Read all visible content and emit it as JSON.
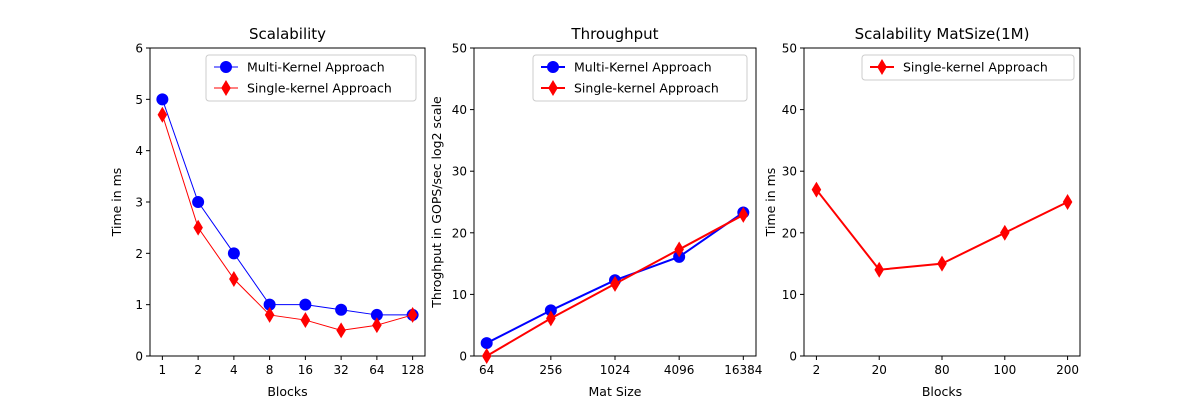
{
  "chart_data": [
    {
      "type": "line",
      "title": "Scalability",
      "xlabel": "Blocks",
      "ylabel": "Time in ms",
      "categories": [
        "1",
        "2",
        "4",
        "8",
        "16",
        "32",
        "64",
        "128"
      ],
      "ylim": [
        0,
        6
      ],
      "yticks": [
        0,
        1,
        2,
        3,
        4,
        5,
        6
      ],
      "grid": false,
      "legend": "top-right",
      "series": [
        {
          "name": " Multi-Kernel Approach",
          "color": "#0000ff",
          "marker": "circle",
          "linewidth": 1,
          "values": [
            5,
            3,
            2,
            1,
            1,
            0.9,
            0.8,
            0.8
          ]
        },
        {
          "name": "Single-kernel Approach",
          "color": "#ff0000",
          "marker": "diamond",
          "linewidth": 1,
          "values": [
            4.7,
            2.5,
            1.5,
            0.8,
            0.7,
            0.5,
            0.6,
            0.8
          ]
        }
      ]
    },
    {
      "type": "line",
      "title": "Throughput",
      "xlabel": "Mat Size",
      "ylabel": "Throghput in GOPS/sec log2 scale",
      "categories": [
        "64",
        "256",
        "1024",
        "4096",
        "16384"
      ],
      "ylim": [
        0,
        50
      ],
      "yticks": [
        0,
        10,
        20,
        30,
        40,
        50
      ],
      "grid": false,
      "legend": "top-right",
      "series": [
        {
          "name": " Multi-Kernel Approach",
          "color": "#0000ff",
          "marker": "circle",
          "linewidth": 2,
          "values": [
            2.1,
            7.4,
            12.3,
            16.1,
            23.3
          ]
        },
        {
          "name": "Single-kernel Approach",
          "color": "#ff0000",
          "marker": "diamond",
          "linewidth": 2,
          "values": [
            0,
            6.1,
            11.7,
            17.3,
            22.9
          ]
        }
      ]
    },
    {
      "type": "line",
      "title": "Scalability MatSize(1M)",
      "xlabel": "Blocks",
      "ylabel": "Time in ms",
      "categories": [
        "2",
        "20",
        "80",
        "100",
        "200"
      ],
      "ylim": [
        0,
        50
      ],
      "yticks": [
        0,
        10,
        20,
        30,
        40,
        50
      ],
      "grid": false,
      "legend": "top-right",
      "series": [
        {
          "name": "Single-kernel Approach",
          "color": "#ff0000",
          "marker": "diamond",
          "linewidth": 2,
          "values": [
            27,
            14,
            15,
            20,
            25
          ]
        }
      ]
    }
  ]
}
